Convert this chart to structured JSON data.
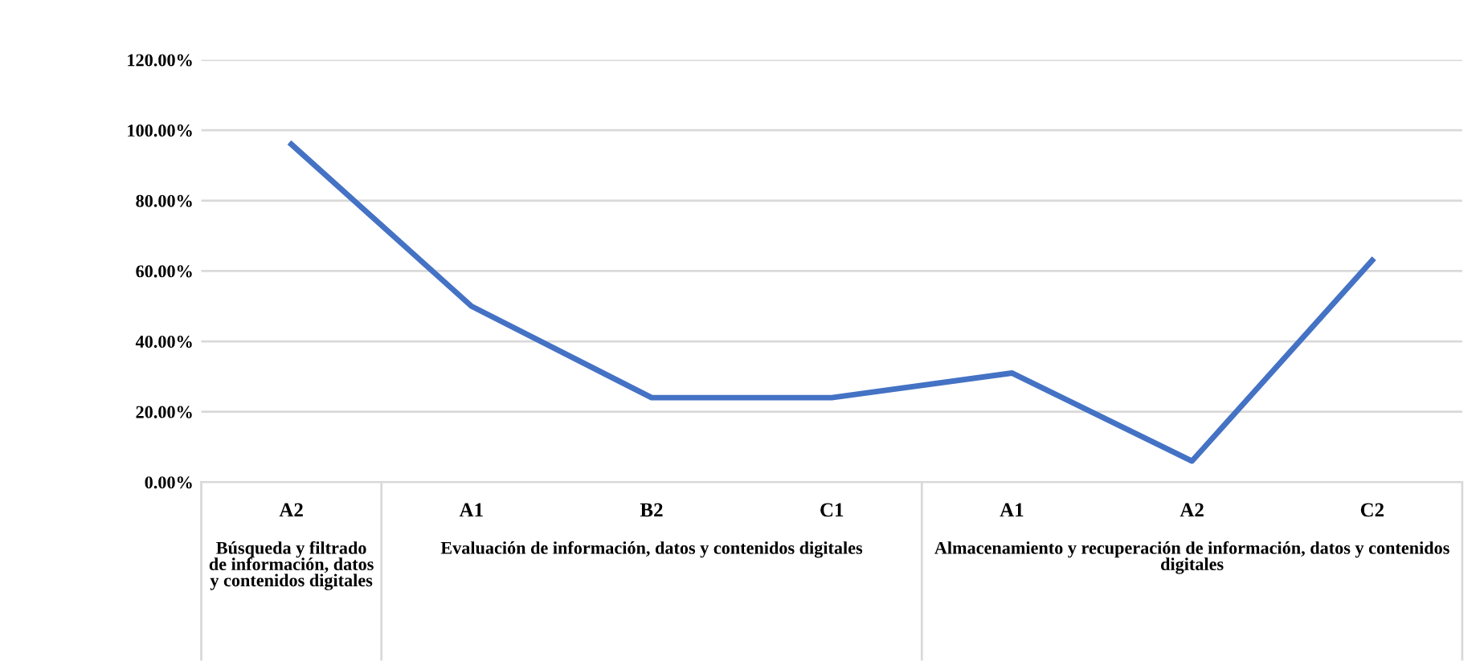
{
  "chart_data": {
    "type": "line",
    "categories": [
      "A2",
      "A1",
      "B2",
      "C1",
      "A1",
      "A2",
      "C2"
    ],
    "series": [
      {
        "color": "#4472c4",
        "values": [
          96,
          50,
          24,
          24,
          31,
          6,
          63
        ]
      }
    ],
    "ylim": [
      0,
      120
    ],
    "yticks": [
      {
        "value": 0,
        "label": "0.00%"
      },
      {
        "value": 20,
        "label": "20.00%"
      },
      {
        "value": 40,
        "label": "40.00%"
      },
      {
        "value": 60,
        "label": "60.00%"
      },
      {
        "value": 80,
        "label": "80.00%"
      },
      {
        "value": 100,
        "label": "100.00%"
      },
      {
        "value": 120,
        "label": "120.00%"
      }
    ],
    "grid": "y",
    "legend": false,
    "marker": "none",
    "line_style": "solid",
    "annotations": [
      "Búsqueda y filtrado de información, datos y contenidos digitales",
      "Evaluación de información, datos y contenidos digitales",
      "Almacenamiento y recuperación de información, datos y contenidos digitales"
    ]
  }
}
